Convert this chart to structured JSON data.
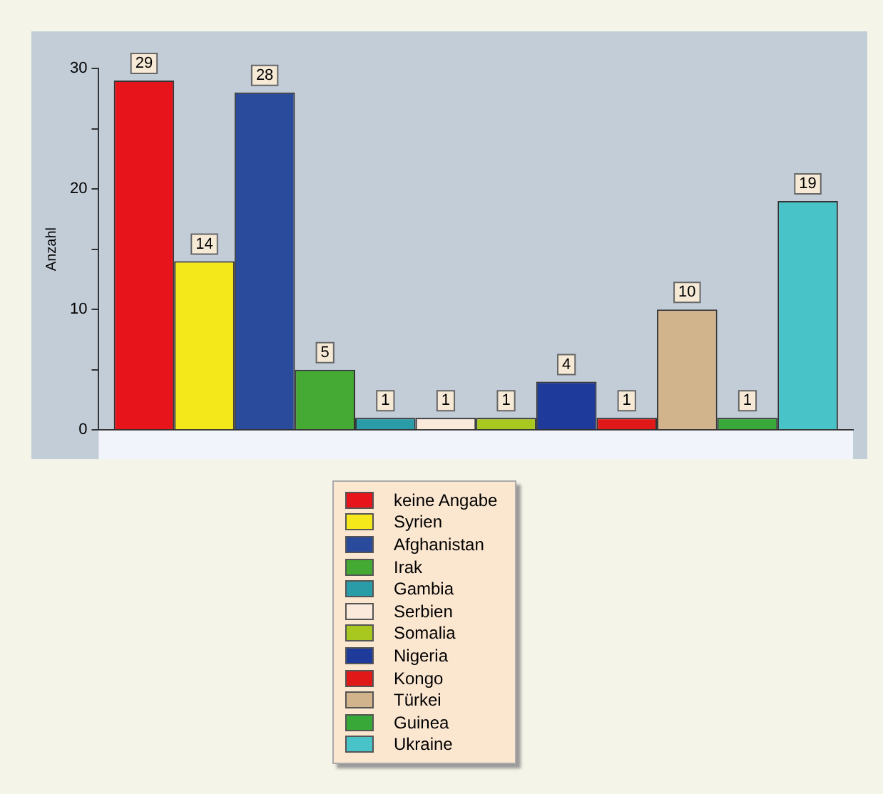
{
  "chart_data": {
    "type": "bar",
    "ylabel": "Anzahl",
    "categories": [
      null
    ],
    "series": [
      {
        "name": "keine Angabe",
        "color": "#e8141c",
        "values": [
          29
        ]
      },
      {
        "name": "Syrien",
        "color": "#f4e81a",
        "values": [
          14
        ]
      },
      {
        "name": "Afghanistan",
        "color": "#2a4a9c",
        "values": [
          28
        ]
      },
      {
        "name": "Irak",
        "color": "#44aa33",
        "values": [
          5
        ]
      },
      {
        "name": "Gambia",
        "color": "#2a9ca8",
        "values": [
          1
        ]
      },
      {
        "name": "Serbien",
        "color": "#fbe9dc",
        "values": [
          1
        ]
      },
      {
        "name": "Somalia",
        "color": "#a8c820",
        "values": [
          1
        ]
      },
      {
        "name": "Nigeria",
        "color": "#1e3a9a",
        "values": [
          4
        ]
      },
      {
        "name": "Kongo",
        "color": "#e01818",
        "values": [
          1
        ]
      },
      {
        "name": "Türkei",
        "color": "#d2b48c",
        "values": [
          10
        ]
      },
      {
        "name": "Guinea",
        "color": "#38a838",
        "values": [
          1
        ]
      },
      {
        "name": "Ukraine",
        "color": "#48c4c8",
        "values": [
          19
        ]
      }
    ],
    "ylim": [
      0,
      30
    ],
    "yticks": [
      0,
      {
        "value": 5,
        "label": null
      },
      10,
      {
        "value": 15,
        "label": null
      },
      20,
      {
        "value": 25,
        "label": null
      },
      30
    ],
    "grid": false,
    "legend": "bottom",
    "data_labels": true
  }
}
